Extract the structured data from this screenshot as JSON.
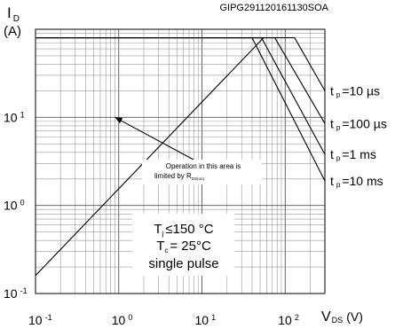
{
  "chart_data": {
    "type": "line",
    "title": "",
    "code": "GIPG291120161130SOA",
    "ylabel_symbol": "I",
    "ylabel_sub": "D",
    "ylabel_unit": "(A)",
    "xlabel_symbol": "V",
    "xlabel_sub": "DS",
    "xlabel_unit": "(V)",
    "x_scale": "log",
    "y_scale": "log",
    "xlim": [
      0.1,
      300
    ],
    "ylim": [
      0.1,
      100
    ],
    "grid": true,
    "x_ticks": [
      {
        "value": 0.1,
        "base": "10",
        "exp": "-1"
      },
      {
        "value": 1,
        "base": "10",
        "exp": "0"
      },
      {
        "value": 10,
        "base": "10",
        "exp": "1"
      },
      {
        "value": 100,
        "base": "10",
        "exp": "2"
      }
    ],
    "y_ticks": [
      {
        "value": 0.1,
        "base": "10",
        "exp": "-1"
      },
      {
        "value": 1,
        "base": "10",
        "exp": "0"
      },
      {
        "value": 10,
        "base": "10",
        "exp": "1"
      }
    ],
    "series": [
      {
        "name": "R_DS(on) limit",
        "x": [
          0.1,
          55
        ],
        "y": [
          0.16,
          80
        ]
      },
      {
        "name": "t_p = 10 µs",
        "x": [
          0.1,
          130,
          300
        ],
        "y": [
          80,
          80,
          20
        ]
      },
      {
        "name": "t_p = 100 µs",
        "x": [
          0.1,
          75,
          300
        ],
        "y": [
          80,
          80,
          8.5
        ]
      },
      {
        "name": "t_p = 1 ms",
        "x": [
          0.1,
          52,
          300
        ],
        "y": [
          80,
          80,
          3.8
        ]
      },
      {
        "name": "t_p = 10 ms",
        "x": [
          0.1,
          40,
          300
        ],
        "y": [
          80,
          80,
          1.9
        ]
      }
    ],
    "curve_labels": [
      {
        "pre": "t",
        "sub": "p",
        "post": "=10 µs",
        "at_y": 20
      },
      {
        "pre": "t",
        "sub": "p",
        "post": "=100 µs",
        "at_y": 8.5
      },
      {
        "pre": "t",
        "sub": "p",
        "post": "=1 ms",
        "at_y": 3.8
      },
      {
        "pre": "t",
        "sub": "p",
        "post": "=10 ms",
        "at_y": 1.9
      }
    ],
    "annotation": {
      "line1": "Operation in this area is",
      "line2_pre": "limited by R",
      "line2_sub": "DS(on)",
      "arrow_to": {
        "x": 0.9,
        "y": 10
      }
    },
    "conditions": {
      "tj_pre": "T",
      "tj_sub": "j",
      "tj_post": "≤150 °C",
      "tc_pre": "T",
      "tc_sub": "c",
      "tc_post": "= 25°C",
      "pulse": "single pulse"
    }
  }
}
